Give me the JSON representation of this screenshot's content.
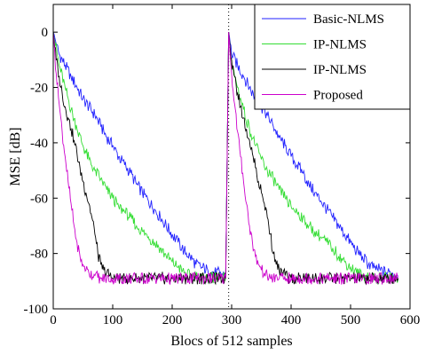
{
  "chart_data": {
    "type": "line",
    "title": "",
    "xlabel": "Blocs of 512 samples",
    "ylabel": "MSE [dB]",
    "xlim": [
      0,
      600
    ],
    "ylim": [
      -100,
      10
    ],
    "xticks": [
      0,
      100,
      200,
      300,
      400,
      500,
      600
    ],
    "yticks": [
      0,
      -20,
      -40,
      -60,
      -80,
      -100
    ],
    "grid": false,
    "legend_position": "top-right",
    "vertical_markers": [
      {
        "x": 295,
        "style": "dotted"
      }
    ],
    "series": [
      {
        "name": "Basic-NLMS",
        "color": "#2222ff",
        "x": [
          0,
          10,
          20,
          30,
          40,
          50,
          60,
          70,
          80,
          90,
          100,
          110,
          120,
          130,
          140,
          150,
          160,
          170,
          180,
          190,
          200,
          210,
          220,
          230,
          240,
          250,
          260,
          270,
          280,
          290,
          295,
          300,
          310,
          320,
          330,
          340,
          350,
          360,
          370,
          380,
          390,
          400,
          410,
          420,
          430,
          440,
          450,
          460,
          470,
          480,
          490,
          500,
          510,
          520,
          530,
          540,
          550,
          560,
          570,
          580
        ],
        "values": [
          0,
          -8,
          -12,
          -16,
          -20,
          -24,
          -27,
          -30,
          -34,
          -38,
          -41,
          -45,
          -48,
          -51,
          -55,
          -58,
          -61,
          -64,
          -67,
          -70,
          -73,
          -76,
          -79,
          -81,
          -84,
          -85,
          -86,
          -87,
          -87,
          -88,
          0,
          -8,
          -12,
          -16,
          -20,
          -24,
          -27,
          -30,
          -34,
          -38,
          -41,
          -45,
          -48,
          -51,
          -55,
          -58,
          -61,
          -64,
          -67,
          -70,
          -73,
          -76,
          -79,
          -81,
          -84,
          -85,
          -86,
          -87,
          -87,
          -88
        ]
      },
      {
        "name": "IP-NLMS",
        "color": "#33dd33",
        "x": [
          0,
          10,
          20,
          30,
          40,
          50,
          60,
          70,
          80,
          90,
          100,
          110,
          120,
          130,
          140,
          150,
          160,
          170,
          180,
          190,
          200,
          210,
          220,
          230,
          240,
          250,
          260,
          270,
          280,
          290,
          295,
          300,
          310,
          320,
          330,
          340,
          350,
          360,
          370,
          380,
          390,
          400,
          410,
          420,
          430,
          440,
          450,
          460,
          470,
          480,
          490,
          500,
          510,
          520,
          530,
          540,
          550,
          560,
          570,
          580
        ],
        "values": [
          0,
          -12,
          -20,
          -28,
          -35,
          -41,
          -46,
          -50,
          -53,
          -57,
          -60,
          -63,
          -65,
          -67,
          -70,
          -72,
          -74,
          -76,
          -78,
          -81,
          -83,
          -85,
          -87,
          -88,
          -88,
          -89,
          -89,
          -89,
          -89,
          -89,
          0,
          -12,
          -20,
          -28,
          -35,
          -41,
          -46,
          -50,
          -53,
          -57,
          -60,
          -63,
          -65,
          -67,
          -70,
          -72,
          -74,
          -76,
          -78,
          -81,
          -83,
          -85,
          -87,
          -88,
          -88,
          -89,
          -89,
          -89,
          -89,
          -89
        ]
      },
      {
        "name": "IP-NLMS",
        "color": "#000000",
        "x": [
          0,
          5,
          10,
          15,
          20,
          25,
          30,
          35,
          40,
          45,
          50,
          55,
          60,
          65,
          70,
          75,
          80,
          85,
          90,
          95,
          100,
          110,
          120,
          140,
          160,
          180,
          200,
          220,
          240,
          260,
          280,
          290,
          295,
          300,
          305,
          310,
          315,
          320,
          325,
          330,
          335,
          340,
          345,
          350,
          355,
          360,
          365,
          370,
          375,
          380,
          385,
          390,
          395,
          400,
          410,
          420,
          440,
          460,
          480,
          500,
          520,
          540,
          560,
          580
        ],
        "values": [
          0,
          -10,
          -16,
          -22,
          -27,
          -31,
          -35,
          -39,
          -44,
          -49,
          -54,
          -58,
          -62,
          -67,
          -73,
          -80,
          -84,
          -86,
          -87,
          -88,
          -89,
          -89,
          -89,
          -89,
          -89,
          -89,
          -89,
          -89,
          -89,
          -89,
          -89,
          -89,
          0,
          -10,
          -16,
          -22,
          -27,
          -31,
          -35,
          -39,
          -44,
          -49,
          -54,
          -58,
          -62,
          -67,
          -73,
          -80,
          -84,
          -86,
          -87,
          -88,
          -89,
          -89,
          -89,
          -89,
          -89,
          -89,
          -89,
          -89,
          -89,
          -89,
          -89,
          -89
        ]
      },
      {
        "name": "Proposed",
        "color": "#cc00cc",
        "x": [
          0,
          5,
          10,
          15,
          20,
          25,
          30,
          35,
          40,
          45,
          50,
          55,
          60,
          70,
          80,
          90,
          100,
          120,
          140,
          160,
          180,
          200,
          220,
          240,
          260,
          280,
          290,
          295,
          300,
          305,
          310,
          315,
          320,
          325,
          330,
          335,
          340,
          345,
          350,
          355,
          360,
          370,
          380,
          400,
          420,
          440,
          460,
          480,
          500,
          520,
          540,
          560,
          580
        ],
        "values": [
          0,
          -15,
          -26,
          -36,
          -45,
          -54,
          -62,
          -70,
          -76,
          -81,
          -84,
          -86,
          -87,
          -88,
          -89,
          -89,
          -89,
          -89,
          -89,
          -89,
          -89,
          -89,
          -89,
          -89,
          -89,
          -89,
          -89,
          0,
          -15,
          -26,
          -36,
          -45,
          -54,
          -62,
          -70,
          -76,
          -81,
          -84,
          -86,
          -87,
          -88,
          -89,
          -89,
          -89,
          -89,
          -89,
          -89,
          -89,
          -89,
          -89,
          -89,
          -89,
          -89
        ]
      }
    ]
  }
}
